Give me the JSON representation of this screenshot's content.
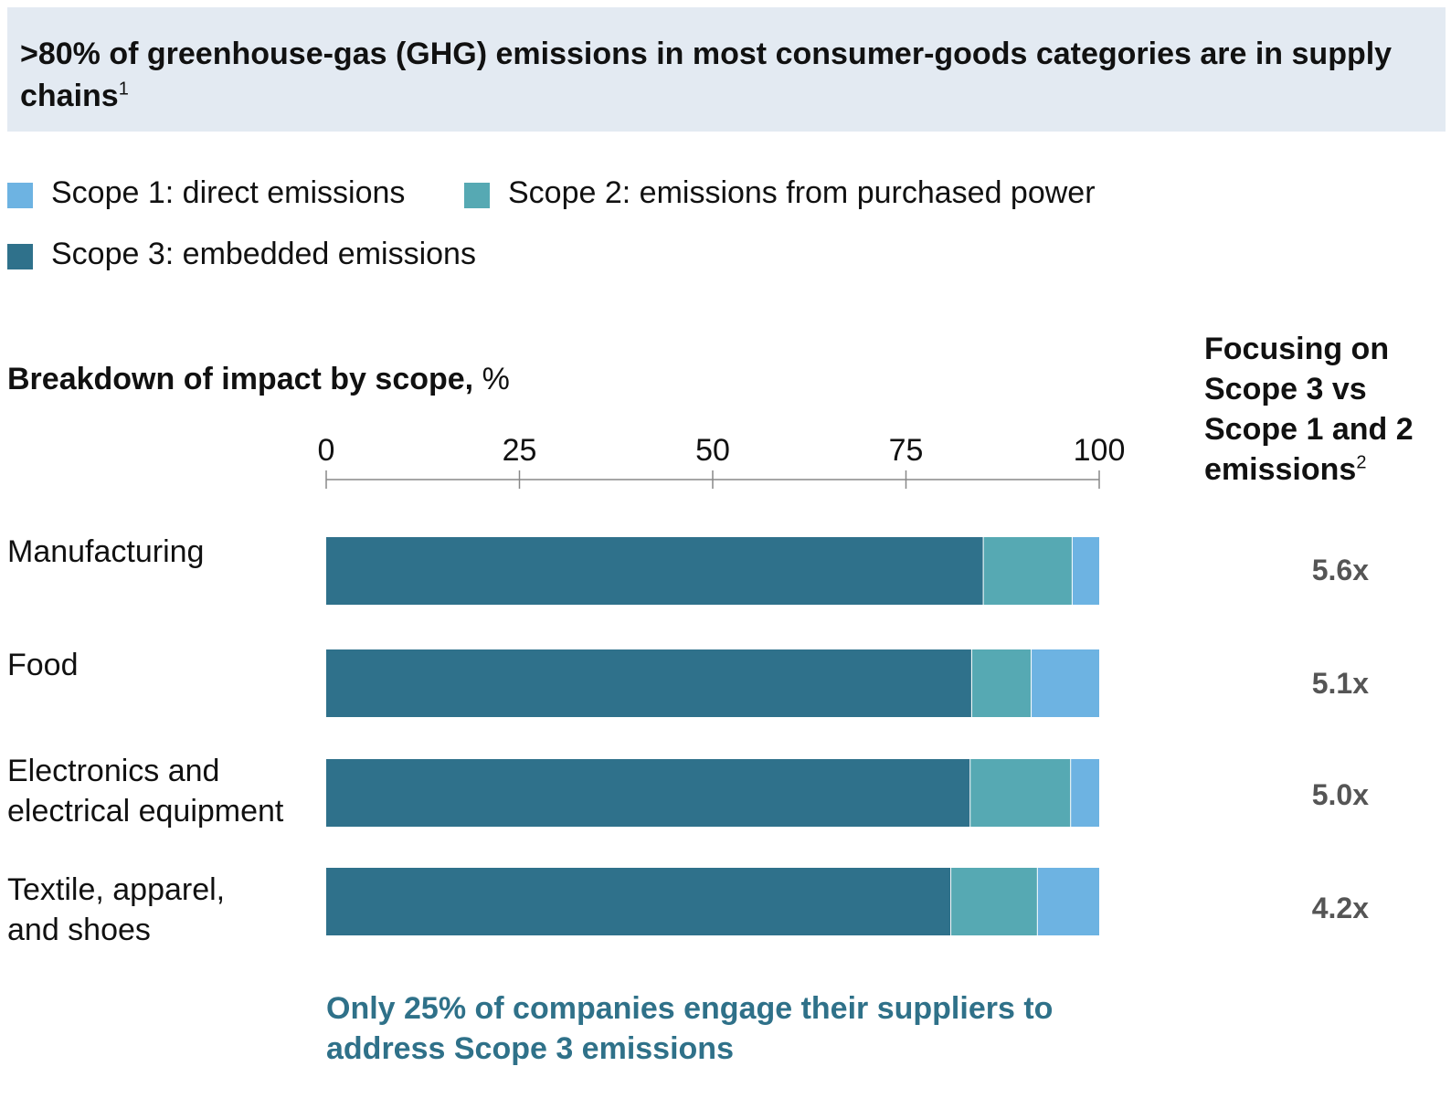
{
  "header": {
    "title": ">80% of greenhouse-gas (GHG) emissions in most consumer-goods categories are in supply chains",
    "title_footnote": "1"
  },
  "legend": [
    {
      "label": "Scope 1: direct emissions",
      "color": "#6db3e2"
    },
    {
      "label": "Scope 2: emissions from purchased power",
      "color": "#56a9b3"
    },
    {
      "label": "Scope 3: embedded emissions",
      "color": "#2f718b"
    }
  ],
  "chart_data": {
    "type": "bar",
    "orientation": "horizontal",
    "stacked": true,
    "title": "Breakdown of impact by scope,",
    "title_unit": "%",
    "categories": [
      "Manufacturing",
      "Food",
      "Electronics and electrical equipment",
      "Textile, apparel, and shoes"
    ],
    "series": [
      {
        "name": "Scope 3: embedded emissions",
        "color": "#2f718b",
        "values": [
          85,
          83.5,
          83.3,
          80.8
        ]
      },
      {
        "name": "Scope 2: emissions from purchased power",
        "color": "#56a9b3",
        "values": [
          11.5,
          7.7,
          13,
          11.2
        ]
      },
      {
        "name": "Scope 1: direct emissions",
        "color": "#6db3e2",
        "values": [
          3.5,
          8.8,
          3.7,
          8
        ]
      }
    ],
    "xlim": [
      0,
      100
    ],
    "xticks": [
      "0",
      "25",
      "50",
      "75",
      "100"
    ],
    "xtick_values": [
      0,
      25,
      50,
      75,
      100
    ],
    "grid": false,
    "legend_position": "top-left"
  },
  "side_column": {
    "heading": "Focusing on Scope 3 vs Scope 1 and 2 emissions",
    "heading_footnote": "2",
    "values": [
      "5.6x",
      "5.1x",
      "5.0x",
      "4.2x"
    ]
  },
  "callout": {
    "text": "Only 25% of companies engage their suppliers to address Scope 3 emissions",
    "color": "#2f7189"
  }
}
